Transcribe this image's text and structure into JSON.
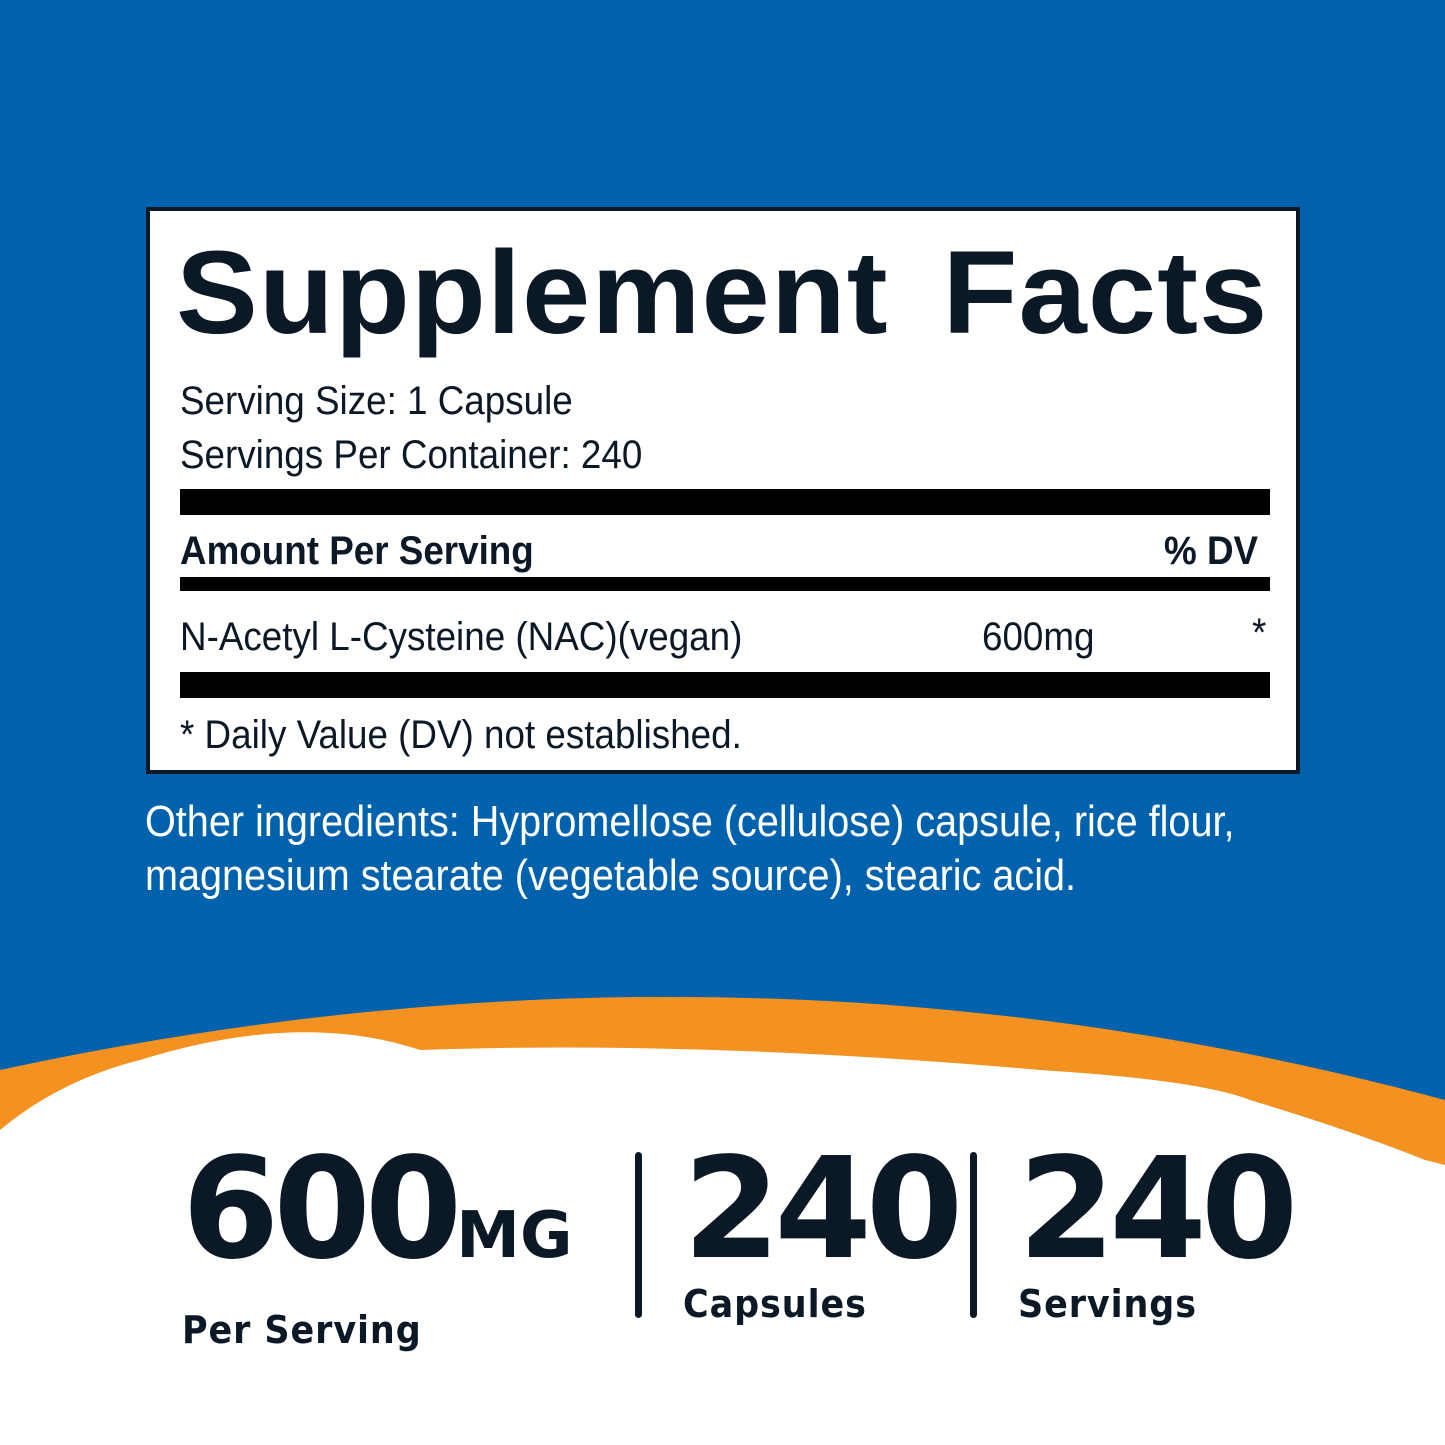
{
  "colors": {
    "blue": "#0062ad",
    "orange": "#f39121",
    "text": "#0b1826"
  },
  "facts": {
    "title": "Supplement Facts",
    "serving_size": "Serving Size: 1 Capsule",
    "servings_per_container": "Servings Per Container: 240",
    "amount_header": "Amount Per Serving",
    "dv_header": "% DV",
    "ingredient": {
      "name": "N-Acetyl L-Cysteine (NAC)(vegan)",
      "amount": "600mg",
      "dv": "*"
    },
    "footnote": "* Daily Value (DV) not established."
  },
  "other_ingredients": [
    "Other ingredients: Hypromellose (cellulose) capsule, rice flour,",
    "magnesium stearate (vegetable source), stearic acid."
  ],
  "stats": [
    {
      "value": "600",
      "unit": "MG",
      "label": "Per Serving"
    },
    {
      "value": "240",
      "label": "Capsules"
    },
    {
      "value": "240",
      "label": "Servings"
    }
  ]
}
